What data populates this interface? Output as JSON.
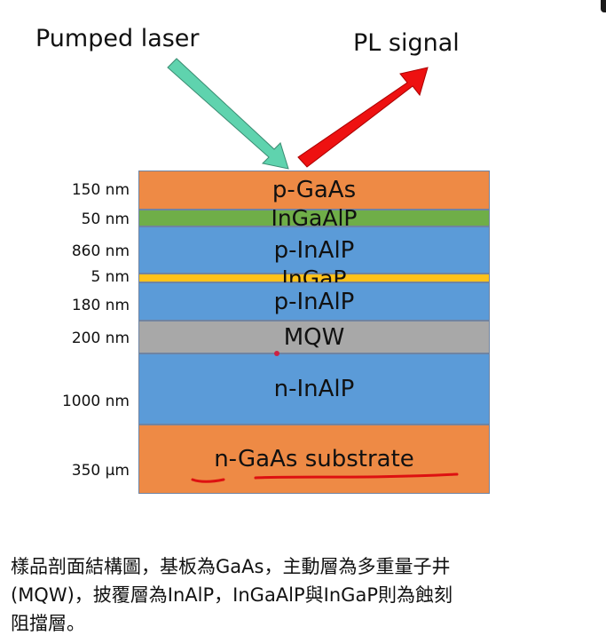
{
  "diagram": {
    "arrows": {
      "pumped_laser": {
        "label": "Pumped laser",
        "color": "#5fd3ae"
      },
      "pl_signal": {
        "label": "PL signal",
        "color": "#ee1111"
      }
    },
    "layers": [
      {
        "name": "p-GaAs",
        "thickness": "150 nm",
        "color": "#ee8a45"
      },
      {
        "name": "InGaAlP",
        "thickness": "50 nm",
        "color": "#6fae48"
      },
      {
        "name": "p-InAlP",
        "thickness": "860 nm",
        "color": "#5b9bd8"
      },
      {
        "name": "InGaP",
        "thickness": "5 nm",
        "color": "#ffc21a"
      },
      {
        "name": "p-InAlP",
        "thickness": "180 nm",
        "color": "#5b9bd8"
      },
      {
        "name": "MQW",
        "thickness": "200 nm",
        "color": "#a8a8a8"
      },
      {
        "name": "n-InAlP",
        "thickness": "1000 nm",
        "color": "#5b9bd8"
      },
      {
        "name": "n-GaAs substrate",
        "thickness": "350 μm",
        "color": "#ee8a45"
      }
    ],
    "underline_color": "#dd1111"
  },
  "caption": {
    "lines": [
      "樣品剖面結構圖，基板為GaAs，主動層為多重量子井",
      "(MQW)，披覆層為InAlP，InGaAlP與InGaP則為蝕刻",
      "阻擋層。"
    ]
  }
}
